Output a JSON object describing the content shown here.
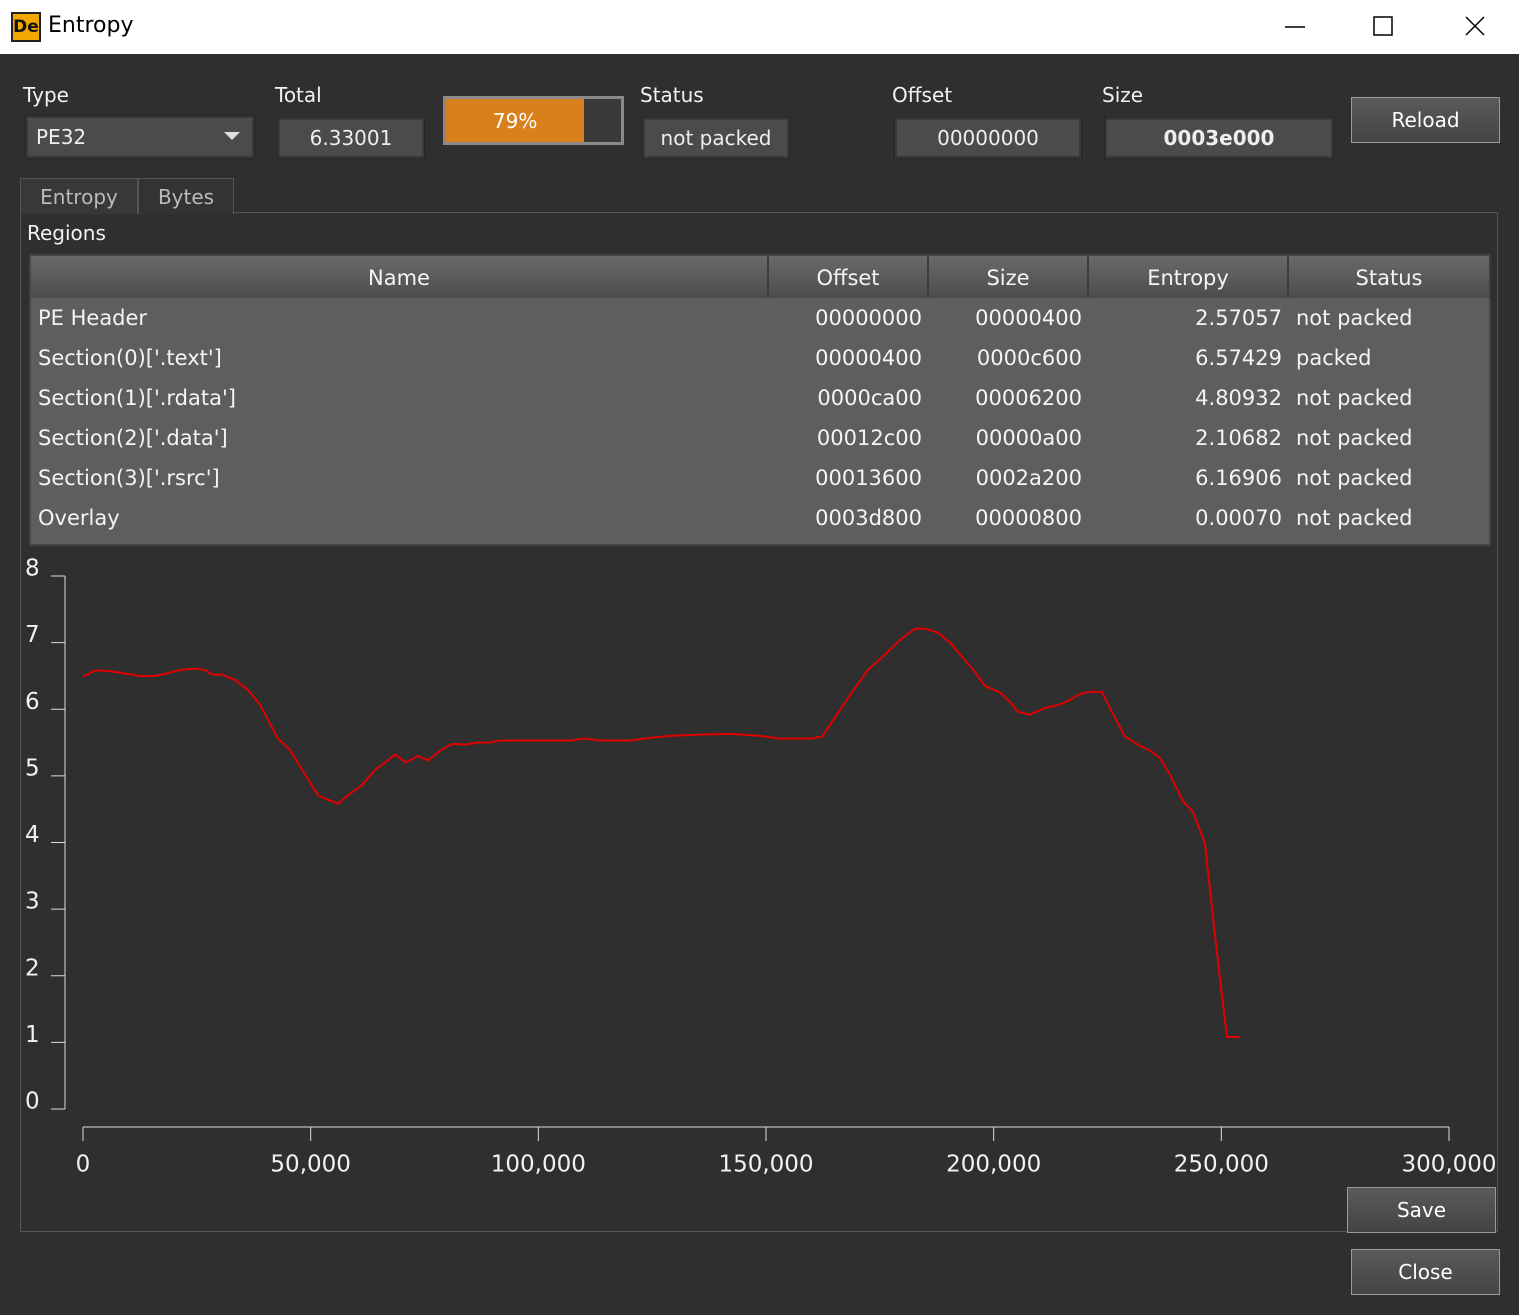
{
  "window": {
    "title": "Entropy",
    "icon_text": "De"
  },
  "toolbar": {
    "type": {
      "label": "Type",
      "value": "PE32"
    },
    "total": {
      "label": "Total",
      "value": "6.33001"
    },
    "progress": {
      "value": 79,
      "label": "79%"
    },
    "status": {
      "label": "Status",
      "value": "not packed"
    },
    "offset": {
      "label": "Offset",
      "value": "00000000"
    },
    "size": {
      "label": "Size",
      "value": "0003e000"
    },
    "reload": "Reload"
  },
  "tabs": [
    "Entropy",
    "Bytes"
  ],
  "regions": {
    "label": "Regions",
    "columns": [
      "Name",
      "Offset",
      "Size",
      "Entropy",
      "Status"
    ],
    "rows": [
      [
        "PE Header",
        "00000000",
        "00000400",
        "2.57057",
        "not packed"
      ],
      [
        "Section(0)['.text']",
        "00000400",
        "0000c600",
        "6.57429",
        "packed"
      ],
      [
        "Section(1)['.rdata']",
        "0000ca00",
        "00006200",
        "4.80932",
        "not packed"
      ],
      [
        "Section(2)['.data']",
        "00012c00",
        "00000a00",
        "2.10682",
        "not packed"
      ],
      [
        "Section(3)['.rsrc']",
        "00013600",
        "0002a200",
        "6.16906",
        "not packed"
      ],
      [
        "Overlay",
        "0003d800",
        "00000800",
        "0.00070",
        "not packed"
      ]
    ]
  },
  "chart_data": {
    "type": "line",
    "color": "#e00000",
    "x": [
      0,
      2635,
      4830,
      8125,
      12517,
      15811,
      18007,
      21302,
      24596,
      26792,
      28330,
      30526,
      33381,
      36236,
      38871,
      42824,
      45460,
      48754,
      51609,
      53805,
      56001,
      58197,
      61272,
      64127,
      66323,
      68519,
      70935,
      73570,
      75767,
      78402,
      81037,
      83892,
      86747,
      89383,
      91579,
      95971,
      100363,
      106952,
      110246,
      113540,
      120128,
      124520,
      128912,
      135501,
      142089,
      148677,
      153069,
      159657,
      162292,
      166245,
      169539,
      172394,
      176127,
      179421,
      182715,
      184911,
      187766,
      190401,
      193037,
      195892,
      198088,
      201382,
      203578,
      205335,
      207970,
      211264,
      214558,
      216754,
      218950,
      221146,
      223781,
      225977,
      228832,
      232126,
      234322,
      236518,
      238714,
      241569,
      243765,
      246400,
      248596,
      251231,
      254086
    ],
    "values": [
      6.49,
      6.58,
      6.58,
      6.55,
      6.5,
      6.5,
      6.53,
      6.59,
      6.61,
      6.59,
      6.52,
      6.52,
      6.44,
      6.29,
      6.07,
      5.56,
      5.39,
      5.02,
      4.71,
      4.64,
      4.58,
      4.71,
      4.86,
      5.09,
      5.2,
      5.32,
      5.2,
      5.3,
      5.23,
      5.38,
      5.48,
      5.47,
      5.5,
      5.5,
      5.53,
      5.53,
      5.53,
      5.53,
      5.56,
      5.53,
      5.53,
      5.57,
      5.6,
      5.62,
      5.63,
      5.6,
      5.56,
      5.56,
      5.59,
      5.99,
      6.32,
      6.59,
      6.82,
      7.04,
      7.21,
      7.21,
      7.15,
      7.0,
      6.79,
      6.56,
      6.35,
      6.25,
      6.11,
      5.96,
      5.92,
      6.02,
      6.07,
      6.14,
      6.23,
      6.26,
      6.26,
      5.96,
      5.59,
      5.45,
      5.38,
      5.27,
      5.02,
      4.62,
      4.46,
      3.99,
      2.61,
      1.08,
      1.08
    ],
    "xlim": [
      0,
      300000
    ],
    "xticks": [
      0,
      {
        "value": 50000,
        "label": "50,000"
      },
      {
        "value": 100000,
        "label": "100,000"
      },
      {
        "value": 150000,
        "label": "150,000"
      },
      {
        "value": 200000,
        "label": "200,000"
      },
      {
        "value": 250000,
        "label": "250,000"
      },
      {
        "value": 300000,
        "label": "300,000"
      }
    ],
    "ylim": [
      0,
      8
    ],
    "yticks": [
      0,
      1,
      2,
      3,
      4,
      5,
      6,
      7,
      8
    ],
    "grid": false
  },
  "buttons": {
    "save": "Save",
    "close": "Close"
  }
}
